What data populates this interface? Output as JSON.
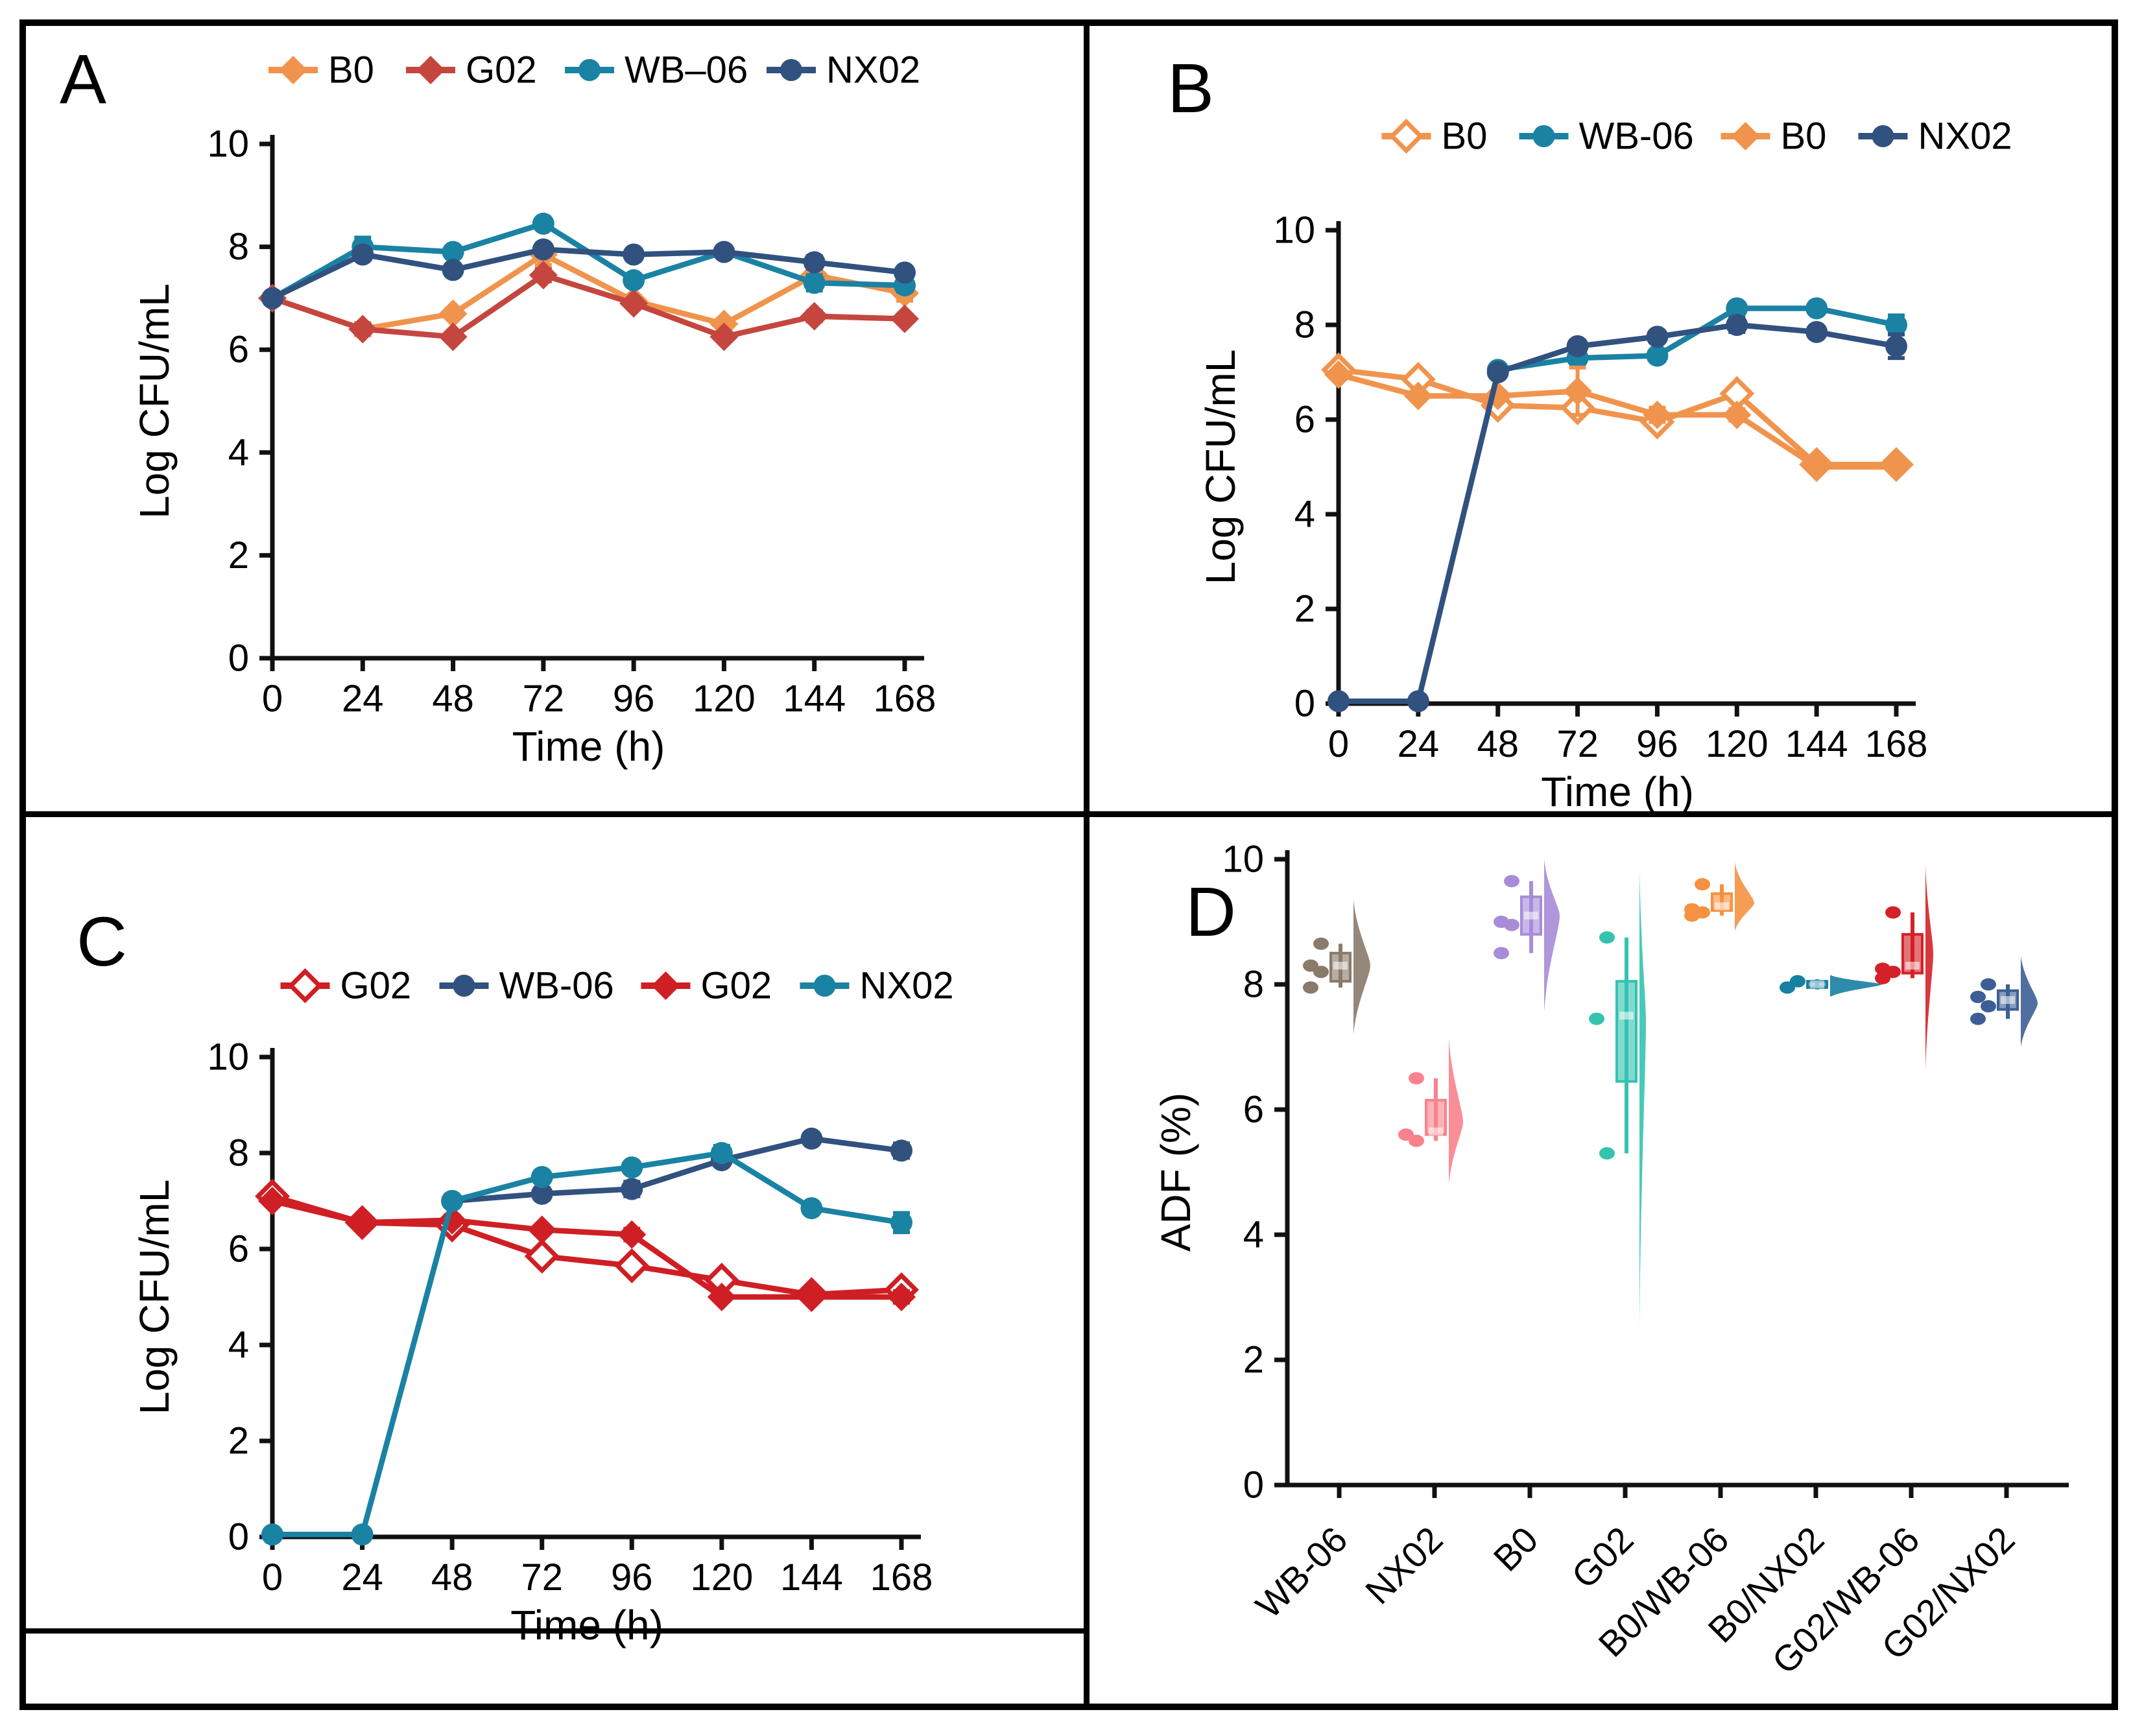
{
  "panel_labels": {
    "A": "A",
    "B": "B",
    "C": "C",
    "D": "D"
  },
  "chart_data": [
    {
      "panel": "A",
      "type": "line",
      "title": "",
      "xlabel": "Time (h)",
      "ylabel": "Log CFU/mL",
      "x": [
        0,
        24,
        48,
        72,
        96,
        120,
        144,
        168
      ],
      "xlim": [
        0,
        168
      ],
      "ylim": [
        0,
        10
      ],
      "yticks": [
        0,
        2,
        4,
        6,
        8,
        10
      ],
      "legend_position": "top",
      "series": [
        {
          "name": "B0",
          "marker": "diamond",
          "open": false,
          "color": "#F0944D",
          "values": [
            7.0,
            6.4,
            6.7,
            7.85,
            6.95,
            6.5,
            7.45,
            7.1
          ],
          "err": [
            0,
            0.12,
            0,
            0.2,
            0,
            0.1,
            0.3,
            0.15
          ]
        },
        {
          "name": "G02",
          "marker": "diamond",
          "open": false,
          "color": "#C5463F",
          "values": [
            7.0,
            6.4,
            6.25,
            7.45,
            6.9,
            6.25,
            6.65,
            6.6
          ],
          "err": [
            0,
            0.1,
            0,
            0.12,
            0,
            0,
            0.1,
            0
          ]
        },
        {
          "name": "WB–06",
          "marker": "circle",
          "open": false,
          "color": "#1A82A2",
          "values": [
            7.0,
            8.0,
            7.9,
            8.45,
            7.35,
            7.9,
            7.3,
            7.25
          ],
          "err": [
            0,
            0.18,
            0,
            0,
            0,
            0,
            0.15,
            0.12
          ]
        },
        {
          "name": "NX02",
          "marker": "circle",
          "open": false,
          "color": "#31517F",
          "values": [
            7.0,
            7.85,
            7.55,
            7.95,
            7.85,
            7.9,
            7.7,
            7.5
          ],
          "err": [
            0,
            0,
            0,
            0.1,
            0,
            0,
            0.12,
            0
          ]
        }
      ]
    },
    {
      "panel": "B",
      "type": "line",
      "title": "",
      "xlabel": "Time (h)",
      "ylabel": "Log CFU/mL",
      "x": [
        0,
        24,
        48,
        72,
        96,
        120,
        144,
        168
      ],
      "xlim": [
        0,
        168
      ],
      "ylim": [
        0,
        10
      ],
      "yticks": [
        0,
        2,
        4,
        6,
        8,
        10
      ],
      "legend_position": "top",
      "series": [
        {
          "name": "B0",
          "marker": "diamond",
          "open": true,
          "color": "#F0944D",
          "values": [
            7.05,
            6.85,
            6.3,
            6.25,
            5.95,
            6.55,
            5.05,
            5.05
          ],
          "err": [
            0.1,
            0,
            0.15,
            0.12,
            0.12,
            0.1,
            0.08,
            0.1
          ]
        },
        {
          "name": "WB-06",
          "marker": "circle",
          "open": false,
          "color": "#1A82A2",
          "values": [
            null,
            null,
            7.05,
            7.3,
            7.35,
            8.35,
            8.35,
            8.0
          ],
          "err": [
            0,
            0,
            0,
            0,
            0,
            0.1,
            0.1,
            0.2
          ]
        },
        {
          "name": "B0",
          "marker": "diamond",
          "open": false,
          "color": "#F0944D",
          "values": [
            6.95,
            6.5,
            6.5,
            6.6,
            6.1,
            6.1,
            5.0,
            5.0
          ],
          "err": [
            0,
            0,
            0,
            0.5,
            0.15,
            0.12,
            0,
            0
          ]
        },
        {
          "name": "NX02",
          "marker": "circle",
          "open": false,
          "color": "#31517F",
          "values": [
            0.05,
            0.05,
            7.0,
            7.55,
            7.75,
            8.0,
            7.85,
            7.55
          ],
          "err": [
            0,
            0,
            0,
            0.12,
            0,
            0.15,
            0,
            0.25
          ]
        }
      ]
    },
    {
      "panel": "C",
      "type": "line",
      "title": "",
      "xlabel": "Time (h)",
      "ylabel": "Log CFU/mL",
      "x": [
        0,
        24,
        48,
        72,
        96,
        120,
        144,
        168
      ],
      "xlim": [
        0,
        168
      ],
      "ylim": [
        0,
        10
      ],
      "yticks": [
        0,
        2,
        4,
        6,
        8,
        10
      ],
      "legend_position": "top",
      "series": [
        {
          "name": "G02",
          "marker": "diamond",
          "open": true,
          "color": "#CF1F24",
          "values": [
            7.1,
            6.55,
            6.5,
            5.85,
            5.65,
            5.35,
            5.05,
            5.15
          ],
          "err": [
            0.12,
            0.1,
            0,
            0.15,
            0.1,
            0,
            0.1,
            0.1
          ]
        },
        {
          "name": "WB-06",
          "marker": "circle",
          "open": false,
          "color": "#31517F",
          "values": [
            null,
            null,
            7.0,
            7.15,
            7.25,
            7.85,
            8.3,
            8.05
          ],
          "err": [
            0,
            0,
            0,
            0.12,
            0.15,
            0.1,
            0,
            0.15
          ]
        },
        {
          "name": "G02",
          "marker": "diamond",
          "open": false,
          "color": "#CF1F24",
          "values": [
            7.0,
            6.55,
            6.6,
            6.4,
            6.3,
            5.0,
            5.0,
            5.0
          ],
          "err": [
            0,
            0,
            0.1,
            0,
            0.12,
            0,
            0,
            0.12
          ]
        },
        {
          "name": "NX02",
          "marker": "circle",
          "open": false,
          "color": "#1A82A2",
          "values": [
            0.05,
            0.05,
            7.0,
            7.5,
            7.7,
            8.0,
            6.85,
            6.55
          ],
          "err": [
            0,
            0,
            0.1,
            0,
            0,
            0.15,
            0,
            0.2
          ]
        }
      ]
    },
    {
      "panel": "D",
      "type": "raincloud",
      "title": "",
      "xlabel": "",
      "ylabel": "ADF (%)",
      "ylim": [
        0,
        10
      ],
      "yticks": [
        0,
        2,
        4,
        6,
        8,
        10
      ],
      "categories": [
        {
          "name": "WB-06",
          "color": "#8A7A6A",
          "points": [
            8.65,
            8.3,
            8.2,
            7.95
          ],
          "box": {
            "lo": 7.95,
            "q1": 8.05,
            "med": 8.3,
            "q3": 8.5,
            "hi": 8.65
          },
          "violin": {
            "min": 7.2,
            "max": 9.35,
            "peak": 8.3,
            "width": 26
          }
        },
        {
          "name": "NX02",
          "color": "#F9828C",
          "points": [
            6.5,
            5.6,
            5.5
          ],
          "box": {
            "lo": 5.5,
            "q1": 5.6,
            "med": 5.65,
            "q3": 6.15,
            "hi": 6.5
          },
          "violin": {
            "min": 4.8,
            "max": 7.15,
            "peak": 5.8,
            "width": 22
          }
        },
        {
          "name": "B0",
          "color": "#A78CD8",
          "points": [
            9.65,
            9.0,
            8.95,
            8.5
          ],
          "box": {
            "lo": 8.5,
            "q1": 8.8,
            "med": 9.1,
            "q3": 9.4,
            "hi": 9.65
          },
          "violin": {
            "min": 7.55,
            "max": 10.0,
            "peak": 9.1,
            "width": 24
          }
        },
        {
          "name": "G02",
          "color": "#35C3B0",
          "points": [
            8.75,
            7.45,
            5.3
          ],
          "box": {
            "lo": 5.3,
            "q1": 6.45,
            "med": 7.5,
            "q3": 8.05,
            "hi": 8.75
          },
          "violin": {
            "min": 2.5,
            "max": 9.85,
            "peak": 7.4,
            "width": 10
          }
        },
        {
          "name": "B0/WB-06",
          "color": "#F59140",
          "points": [
            9.6,
            9.2,
            9.15,
            9.1
          ],
          "box": {
            "lo": 9.1,
            "q1": 9.18,
            "med": 9.25,
            "q3": 9.45,
            "hi": 9.6
          },
          "violin": {
            "min": 8.85,
            "max": 9.95,
            "peak": 9.3,
            "width": 30
          }
        },
        {
          "name": "B0/NX02",
          "color": "#1580A0",
          "points": [
            8.05,
            7.95
          ],
          "box": {
            "lo": 7.92,
            "q1": 7.95,
            "med": 8.0,
            "q3": 8.05,
            "hi": 8.08
          },
          "violin": {
            "min": 7.8,
            "max": 8.15,
            "peak": 8.0,
            "width": 80
          }
        },
        {
          "name": "G02/WB-06",
          "color": "#D42127",
          "points": [
            9.15,
            8.25,
            8.2,
            8.1
          ],
          "box": {
            "lo": 8.1,
            "q1": 8.18,
            "med": 8.3,
            "q3": 8.8,
            "hi": 9.15
          },
          "violin": {
            "min": 6.6,
            "max": 9.9,
            "peak": 8.5,
            "width": 12
          }
        },
        {
          "name": "G02/NX02",
          "color": "#3D5E95",
          "points": [
            8.0,
            7.8,
            7.65,
            7.45
          ],
          "box": {
            "lo": 7.45,
            "q1": 7.6,
            "med": 7.75,
            "q3": 7.9,
            "hi": 8.0
          },
          "violin": {
            "min": 7.0,
            "max": 8.45,
            "peak": 7.7,
            "width": 26
          }
        }
      ]
    }
  ]
}
